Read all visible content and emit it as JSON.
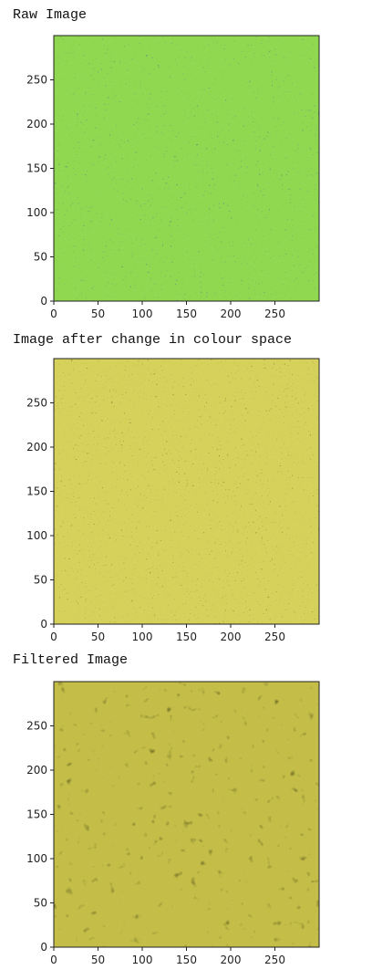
{
  "chart_data": [
    {
      "type": "heatmap",
      "title": "Raw Image",
      "colormap": "viridis",
      "texture": "noise",
      "xlim": [
        0,
        300
      ],
      "ylim": [
        0,
        300
      ],
      "x_ticks": [
        "0",
        "50",
        "100",
        "150",
        "200",
        "250"
      ],
      "y_ticks": [
        "0",
        "50",
        "100",
        "150",
        "200",
        "250"
      ],
      "grid": false,
      "colors": {
        "low": "#2c4d8c",
        "mid": "#2a9a8a",
        "high": "#8fd84f"
      }
    },
    {
      "type": "heatmap",
      "title": "Image after change in colour space",
      "colormap": "olive-yellow",
      "texture": "noise",
      "xlim": [
        0,
        300
      ],
      "ylim": [
        0,
        300
      ],
      "x_ticks": [
        "0",
        "50",
        "100",
        "150",
        "200",
        "250"
      ],
      "y_ticks": [
        "0",
        "50",
        "100",
        "150",
        "200",
        "250"
      ],
      "grid": false,
      "colors": {
        "low": "#1e1c06",
        "mid": "#7a7420",
        "high": "#d6d15a"
      }
    },
    {
      "type": "heatmap",
      "title": "Filtered Image",
      "colormap": "olive-yellow",
      "texture": "smoothed-noise",
      "xlim": [
        0,
        300
      ],
      "ylim": [
        0,
        300
      ],
      "x_ticks": [
        "0",
        "50",
        "100",
        "150",
        "200",
        "250"
      ],
      "y_ticks": [
        "0",
        "50",
        "100",
        "150",
        "200",
        "250"
      ],
      "grid": false,
      "colors": {
        "low": "#4a4510",
        "mid": "#857f22",
        "high": "#c4be48"
      }
    }
  ]
}
